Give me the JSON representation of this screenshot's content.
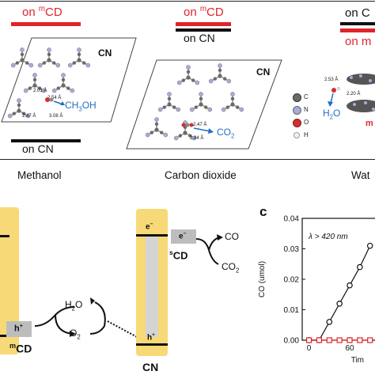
{
  "top_panel": {
    "structure_1": {
      "tag_top_text": "on ",
      "tag_top_sup": "m",
      "tag_top_tail": "CD",
      "tag_bottom": "on CN",
      "substrate_label": "CN",
      "bond_labels": [
        "2.01 Å",
        "2.54 Å",
        "2.47 Å",
        "3.08 Å"
      ],
      "molecule": "CH",
      "molecule_sub": "3",
      "molecule_tail": "OH",
      "caption": "Methanol"
    },
    "structure_2": {
      "tag_top_text": "on ",
      "tag_top_sup": "m",
      "tag_top_tail": "CD",
      "tag_bottom": "on CN",
      "substrate_label": "CN",
      "bond_labels": [
        "2.47 Å",
        "2.94 Å"
      ],
      "molecule": "CO",
      "molecule_sub": "2",
      "caption": "Carbon dioxide"
    },
    "structure_3": {
      "tag_top": "on C",
      "tag_bottom": "on m",
      "bond_labels": [
        "2.53 Å",
        "2.20 Å"
      ],
      "molecule": "H",
      "molecule_sub": "2",
      "molecule_tail": "O",
      "side_label": "m",
      "caption": "Wat"
    },
    "legend": [
      {
        "label": "C",
        "color": "#6a6a6a"
      },
      {
        "label": "N",
        "color": "#a7acd6"
      },
      {
        "label": "O",
        "color": "#d13030"
      },
      {
        "label": "H",
        "color": "#f2f2f2"
      }
    ]
  },
  "bottom_left": {
    "h_plus_left": "h",
    "h_plus_sup": "+",
    "h2o": "H",
    "h2o_sub": "2",
    "h2o_tail": "O",
    "o2": "O",
    "o2_sub": "2",
    "mcd_sup": "m",
    "mcd": "CD",
    "e_minus": "e",
    "e_minus_sup": "−",
    "e_minus2": "e",
    "e_minus2_sup": "−",
    "scd_sup": "s",
    "scd": "CD",
    "co": "CO",
    "co2": "CO",
    "co2_sub": "2",
    "h_plus_right": "h",
    "h_plus_right_sup": "+",
    "cn": "CN",
    "colors": {
      "band": "#f7d977",
      "box": "#bdbdbd"
    }
  },
  "chart_panel": {
    "panel_letter": "c",
    "condition": "λ > 420 nm",
    "ylabel": "CO (umol)",
    "xlabel": "Tim",
    "yticks": [
      "0.00",
      "0.01",
      "0.02",
      "0.03",
      "0.04"
    ],
    "xticks": [
      "0",
      "60"
    ]
  },
  "chart_data": {
    "type": "line",
    "title": "",
    "xlabel": "Tim",
    "ylabel": "CO (umol)",
    "ylim": [
      0,
      0.04
    ],
    "xlim": [
      -10,
      95
    ],
    "series": [
      {
        "color": "#111111",
        "marker": "circle",
        "x": [
          0,
          15,
          30,
          45,
          60,
          75,
          90
        ],
        "y": [
          0.0,
          0.0,
          0.006,
          0.012,
          0.018,
          0.024,
          0.031
        ]
      },
      {
        "color": "#e0242b",
        "marker": "square",
        "x": [
          0,
          15,
          30,
          45,
          60,
          75,
          90
        ],
        "y": [
          0.0,
          0.0,
          0.0,
          0.0,
          0.0,
          0.0,
          0.0
        ]
      }
    ]
  }
}
